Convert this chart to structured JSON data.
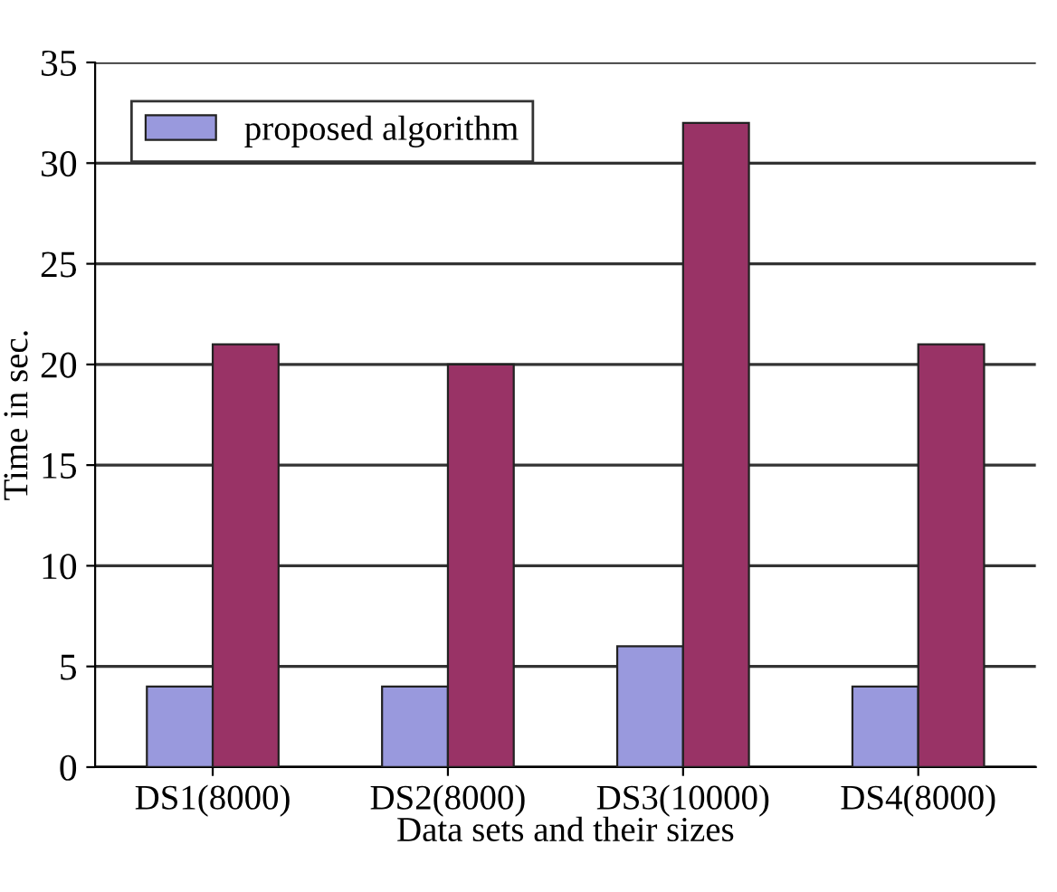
{
  "chart_data": {
    "type": "bar",
    "xlabel": "Data sets and their sizes",
    "ylabel": "Time in sec.",
    "categories": [
      "DS1(8000)",
      "DS2(8000)",
      "DS3(10000)",
      "DS4(8000)"
    ],
    "series": [
      {
        "name": "proposed algorithm",
        "color": "#9999dd",
        "values": [
          4,
          4,
          6,
          4
        ]
      },
      {
        "color": "#993366",
        "values": [
          21,
          20,
          32,
          21
        ]
      }
    ],
    "ylim": [
      0,
      35
    ],
    "yticks": [
      0,
      5,
      10,
      15,
      20,
      25,
      30,
      35
    ],
    "grid": "y",
    "legend": "top left"
  }
}
